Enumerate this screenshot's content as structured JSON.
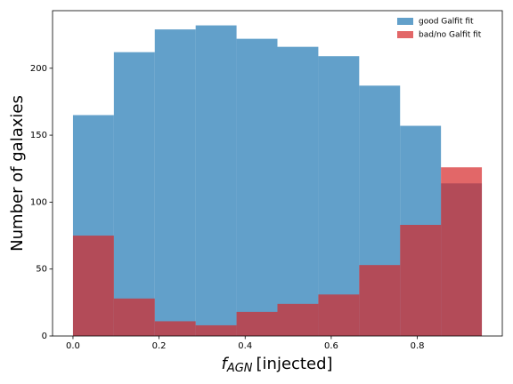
{
  "chart_data": {
    "type": "histogram",
    "xlabel": {
      "symbol": "f",
      "subscript": "AGN",
      "text": "[injected]"
    },
    "ylabel": "Number of galaxies",
    "bins": [
      0,
      0.095,
      0.19,
      0.285,
      0.38,
      0.475,
      0.57,
      0.665,
      0.76,
      0.855,
      0.95
    ],
    "series": [
      {
        "name": "good Galfit fit",
        "color": "#1f77b4",
        "values": [
          165,
          212,
          229,
          232,
          222,
          216,
          209,
          187,
          157,
          114
        ]
      },
      {
        "name": "bad/no Galfit fit",
        "color": "#d62728",
        "values": [
          75,
          28,
          11,
          8,
          18,
          24,
          31,
          53,
          83,
          126
        ]
      }
    ],
    "opacity": 0.7,
    "xlim": [
      -0.0475,
      0.9975
    ],
    "ylim": [
      0,
      243
    ],
    "xticks": [
      {
        "value": 0,
        "label": "0.0"
      },
      0.2,
      0.4,
      0.6,
      0.8
    ],
    "yticks": [
      0,
      50,
      100,
      150,
      200
    ],
    "legend": "upper right"
  }
}
